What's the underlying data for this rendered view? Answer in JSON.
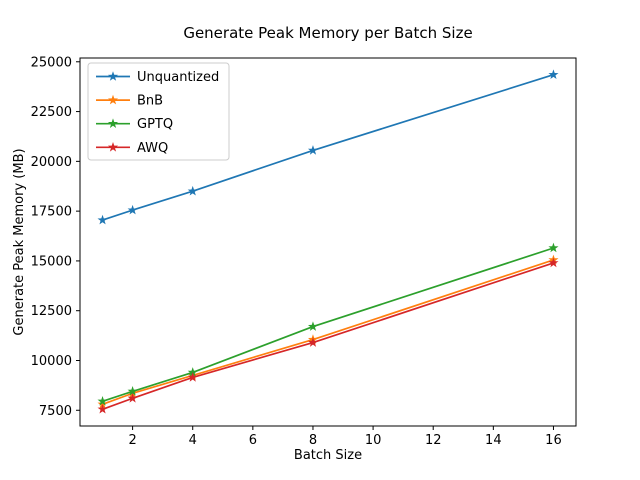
{
  "chart_data": {
    "type": "line",
    "title": "Generate Peak Memory per Batch Size",
    "xlabel": "Batch Size",
    "ylabel": "Generate Peak Memory (MB)",
    "x": [
      1,
      2,
      4,
      8,
      16
    ],
    "series": [
      {
        "name": "Unquantized",
        "color": "#1f77b4",
        "values": [
          17050,
          17550,
          18500,
          20550,
          24350
        ]
      },
      {
        "name": "BnB",
        "color": "#ff7f0e",
        "values": [
          7800,
          8350,
          9250,
          11050,
          15050
        ]
      },
      {
        "name": "GPTQ",
        "color": "#2ca02c",
        "values": [
          7950,
          8450,
          9400,
          11700,
          15650
        ]
      },
      {
        "name": "AWQ",
        "color": "#d62728",
        "values": [
          7550,
          8100,
          9150,
          10900,
          14900
        ]
      }
    ],
    "xticks": [
      2,
      4,
      6,
      8,
      10,
      12,
      14,
      16
    ],
    "yticks": [
      7500,
      10000,
      12500,
      15000,
      17500,
      20000,
      22500,
      25000
    ],
    "xlim": [
      0.25,
      16.75
    ],
    "ylim": [
      6710,
      25190
    ],
    "marker": "star",
    "grid": false,
    "legend_position": "upper left",
    "colors": {
      "axes": "#000000",
      "legend_border": "#cccccc",
      "background": "#ffffff"
    }
  }
}
